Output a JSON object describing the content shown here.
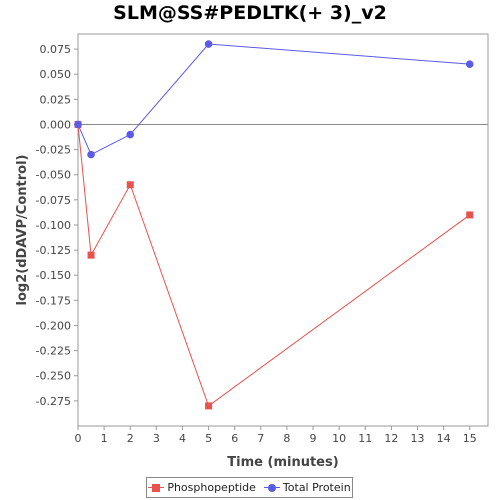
{
  "chart_data": {
    "type": "line",
    "title": "SLM@SS#PEDLTK(+ 3)_v2",
    "xlabel": "Time (minutes)",
    "ylabel": "log2(dDAVP/Control)",
    "xlim": [
      0,
      15.7
    ],
    "ylim": [
      -0.3,
      0.09
    ],
    "x_ticks": [
      0,
      1,
      2,
      3,
      4,
      5,
      6,
      7,
      8,
      9,
      10,
      11,
      12,
      13,
      14,
      15
    ],
    "y_ticks": [
      0.075,
      0.05,
      0.025,
      0.0,
      -0.025,
      -0.05,
      -0.075,
      -0.1,
      -0.125,
      -0.15,
      -0.175,
      -0.2,
      -0.225,
      -0.25,
      -0.275
    ],
    "y_tick_labels": [
      "0.075",
      "0.050",
      "0.025",
      "0.000",
      "-0.025",
      "-0.050",
      "-0.075",
      "-0.100",
      "-0.125",
      "-0.150",
      "-0.175",
      "-0.200",
      "-0.225",
      "-0.250",
      "-0.275"
    ],
    "zero_line": true,
    "grid": false,
    "legend_position": "bottom",
    "series": [
      {
        "name": "Phosphopeptide",
        "marker": "square",
        "color": "#e8534f",
        "x": [
          0,
          0.5,
          2,
          5,
          15
        ],
        "y": [
          0.0,
          -0.13,
          -0.06,
          -0.28,
          -0.09
        ]
      },
      {
        "name": "Total Protein",
        "marker": "circle",
        "color": "#5b5be8",
        "x": [
          0,
          0.5,
          2,
          5,
          15
        ],
        "y": [
          0.0,
          -0.03,
          -0.01,
          0.08,
          0.06
        ]
      }
    ]
  }
}
